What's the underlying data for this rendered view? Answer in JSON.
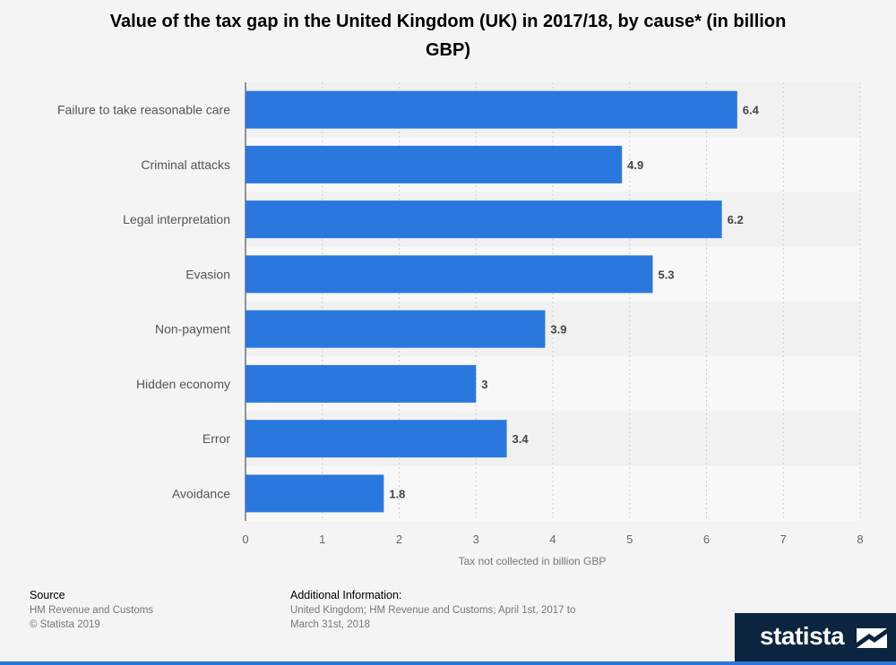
{
  "chart_data": {
    "type": "bar",
    "orientation": "horizontal",
    "title": "Value of the tax gap in the United Kingdom (UK) in 2017/18, by cause* (in billion GBP)",
    "categories": [
      "Failure to take reasonable care",
      "Criminal attacks",
      "Legal interpretation",
      "Evasion",
      "Non-payment",
      "Hidden economy",
      "Error",
      "Avoidance"
    ],
    "values": [
      6.4,
      4.9,
      6.2,
      5.3,
      3.9,
      3,
      3.4,
      1.8
    ],
    "value_labels": [
      "6.4",
      "4.9",
      "6.2",
      "5.3",
      "3.9",
      "3",
      "3.4",
      "1.8"
    ],
    "xlabel": "Tax not collected in billion GBP",
    "xlim": [
      0,
      8
    ],
    "xticks": [
      "0",
      "1",
      "2",
      "3",
      "4",
      "5",
      "6",
      "7",
      "8"
    ],
    "bar_color": "#2a78de",
    "grid": true
  },
  "footer": {
    "source_head": "Source",
    "source_line1": "HM Revenue and Customs",
    "source_line2": "© Statista 2019",
    "info_head": "Additional Information:",
    "info_line1": "United Kingdom; HM Revenue and Customs; April 1st, 2017 to",
    "info_line2": "March 31st, 2018"
  },
  "brand": {
    "name": "statista"
  }
}
